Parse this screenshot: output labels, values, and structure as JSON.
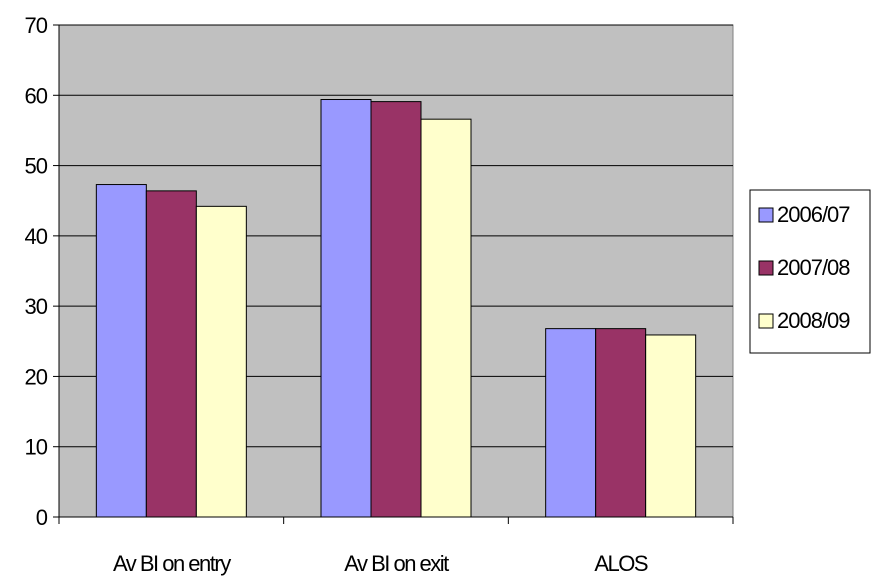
{
  "chart_data": {
    "type": "bar",
    "title": "",
    "xlabel": "",
    "ylabel": "",
    "categories": [
      "Av BI on entry",
      "Av BI on exit",
      "ALOS"
    ],
    "series": [
      {
        "name": "2006/07",
        "values": [
          47.3,
          59.4,
          26.8
        ],
        "color": "#9999ff"
      },
      {
        "name": "2007/08",
        "values": [
          46.4,
          59.1,
          26.8
        ],
        "color": "#993366"
      },
      {
        "name": "2008/09",
        "values": [
          44.2,
          56.6,
          25.9
        ],
        "color": "#ffffcc"
      }
    ],
    "ylim": [
      0,
      70
    ],
    "yticks": [
      0,
      10,
      20,
      30,
      40,
      50,
      60,
      70
    ],
    "grid": true,
    "plot_background": "#c0c0c0",
    "legend_position": "right"
  }
}
